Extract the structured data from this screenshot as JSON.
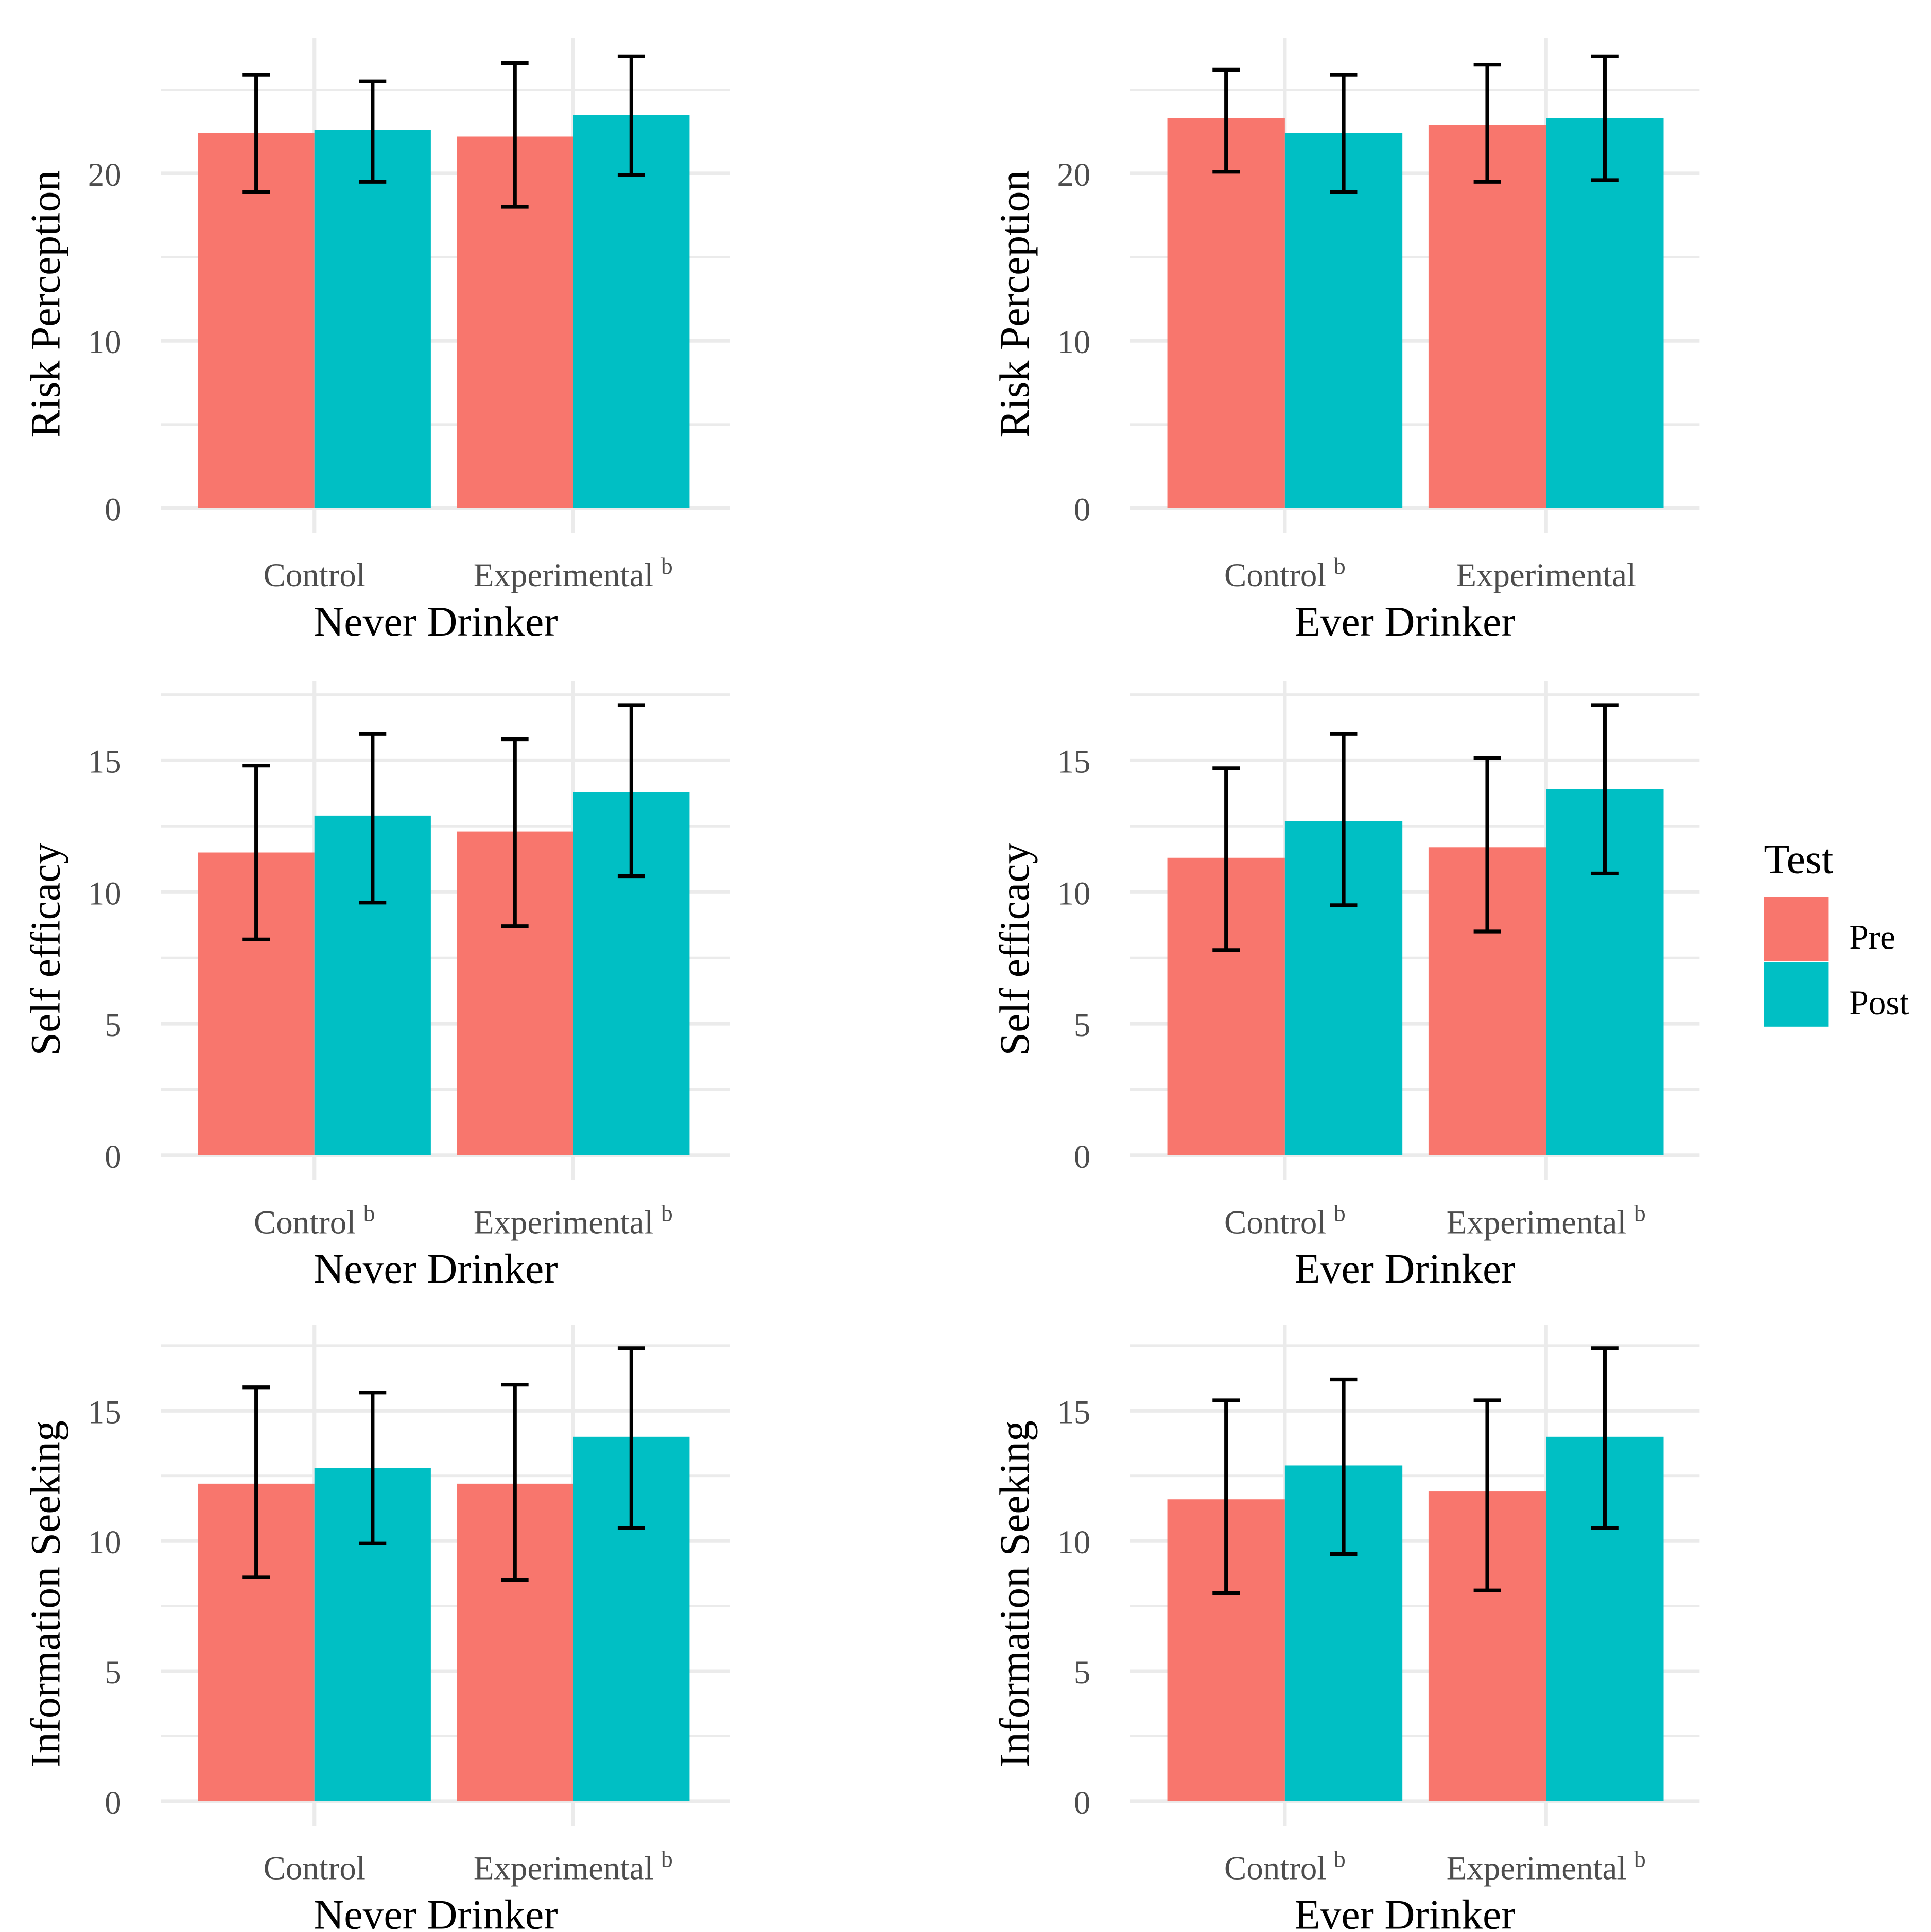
{
  "chart_data": [
    {
      "type": "bar",
      "title": "",
      "ylabel": "Risk Perception",
      "xlabel": "Never Drinker",
      "ylim": [
        0,
        28.1
      ],
      "yticks": [
        0,
        10,
        20
      ],
      "categories": [
        "Control",
        "Experimental"
      ],
      "superscripts": [
        "",
        "b"
      ],
      "series": [
        {
          "name": "Pre",
          "values": [
            22.4,
            22.2
          ],
          "err_low": [
            18.9,
            18.0
          ],
          "err_high": [
            25.9,
            26.6
          ]
        },
        {
          "name": "Post",
          "values": [
            22.6,
            23.5
          ],
          "err_low": [
            19.5,
            19.9
          ],
          "err_high": [
            25.5,
            27.0
          ]
        }
      ]
    },
    {
      "type": "bar",
      "title": "",
      "ylabel": "Risk Perception",
      "xlabel": "Ever Drinker",
      "ylim": [
        0,
        28.1
      ],
      "yticks": [
        0,
        10,
        20
      ],
      "categories": [
        "Control",
        "Experimental"
      ],
      "superscripts": [
        "b",
        ""
      ],
      "series": [
        {
          "name": "Pre",
          "values": [
            23.3,
            22.9
          ],
          "err_low": [
            20.1,
            19.5
          ],
          "err_high": [
            26.2,
            26.5
          ]
        },
        {
          "name": "Post",
          "values": [
            22.4,
            23.3
          ],
          "err_low": [
            18.9,
            19.6
          ],
          "err_high": [
            25.9,
            27.0
          ]
        }
      ]
    },
    {
      "type": "bar",
      "title": "",
      "ylabel": "Self efficacy",
      "xlabel": "Never Drinker",
      "ylim": [
        0,
        18
      ],
      "yticks": [
        0,
        5,
        10,
        15
      ],
      "categories": [
        "Control",
        "Experimental"
      ],
      "superscripts": [
        "b",
        "b"
      ],
      "series": [
        {
          "name": "Pre",
          "values": [
            11.5,
            12.3
          ],
          "err_low": [
            8.2,
            8.7
          ],
          "err_high": [
            14.8,
            15.8
          ]
        },
        {
          "name": "Post",
          "values": [
            12.9,
            13.8
          ],
          "err_low": [
            9.6,
            10.6
          ],
          "err_high": [
            16.0,
            17.1
          ]
        }
      ]
    },
    {
      "type": "bar",
      "title": "",
      "ylabel": "Self efficacy",
      "xlabel": "Ever Drinker",
      "ylim": [
        0,
        18
      ],
      "yticks": [
        0,
        5,
        10,
        15
      ],
      "categories": [
        "Control",
        "Experimental"
      ],
      "superscripts": [
        "b",
        "b"
      ],
      "series": [
        {
          "name": "Pre",
          "values": [
            11.3,
            11.7
          ],
          "err_low": [
            7.8,
            8.5
          ],
          "err_high": [
            14.7,
            15.1
          ]
        },
        {
          "name": "Post",
          "values": [
            12.7,
            13.9
          ],
          "err_low": [
            9.5,
            10.7
          ],
          "err_high": [
            16.0,
            17.1
          ]
        }
      ]
    },
    {
      "type": "bar",
      "title": "",
      "ylabel": "Information Seeking",
      "xlabel": "Never Drinker",
      "ylim": [
        0,
        18.3
      ],
      "yticks": [
        0,
        5,
        10,
        15
      ],
      "categories": [
        "Control",
        "Experimental"
      ],
      "superscripts": [
        "",
        "b"
      ],
      "series": [
        {
          "name": "Pre",
          "values": [
            12.2,
            12.2
          ],
          "err_low": [
            8.6,
            8.5
          ],
          "err_high": [
            15.9,
            16.0
          ]
        },
        {
          "name": "Post",
          "values": [
            12.8,
            14.0
          ],
          "err_low": [
            9.9,
            10.5
          ],
          "err_high": [
            15.7,
            17.4
          ]
        }
      ]
    },
    {
      "type": "bar",
      "title": "",
      "ylabel": "Information Seeking",
      "xlabel": "Ever Drinker",
      "ylim": [
        0,
        18.3
      ],
      "yticks": [
        0,
        5,
        10,
        15
      ],
      "categories": [
        "Control",
        "Experimental"
      ],
      "superscripts": [
        "b",
        "b"
      ],
      "series": [
        {
          "name": "Pre",
          "values": [
            11.6,
            11.9
          ],
          "err_low": [
            8.0,
            8.1
          ],
          "err_high": [
            15.4,
            15.4
          ]
        },
        {
          "name": "Post",
          "values": [
            12.9,
            14.0
          ],
          "err_low": [
            9.5,
            10.5
          ],
          "err_high": [
            16.2,
            17.4
          ]
        }
      ]
    }
  ],
  "legend": {
    "title": "Test",
    "items": [
      {
        "label": "Pre",
        "color": "#F8766D"
      },
      {
        "label": "Post",
        "color": "#00BFC4"
      }
    ],
    "placement": "right"
  }
}
